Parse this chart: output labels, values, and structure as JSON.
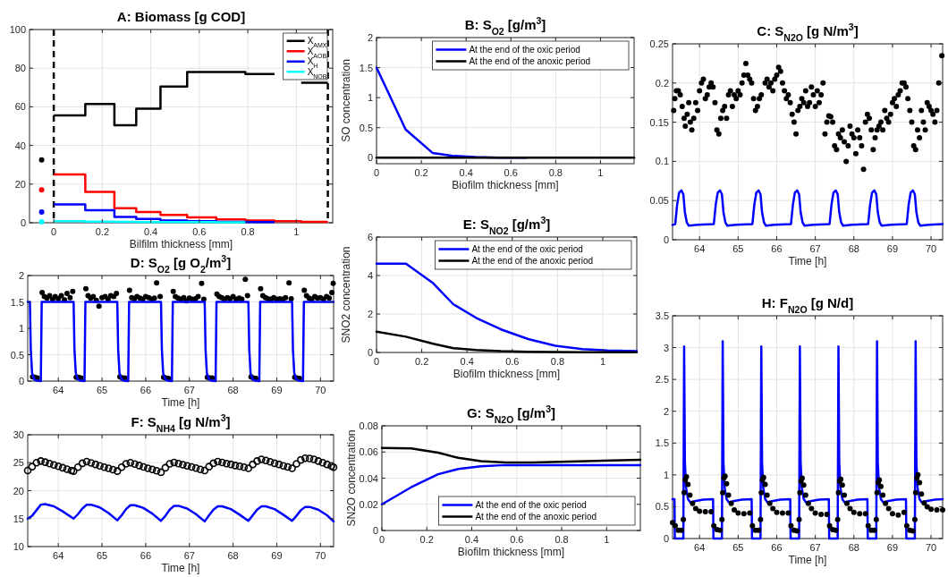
{
  "chart_data": [
    {
      "type": "step",
      "title": "A: Biomass [g COD]",
      "xlabel": "Bilfilm thickness [mm]",
      "xlim": [
        -0.1,
        1.15
      ],
      "xticks": [
        0,
        0.2,
        0.4,
        0.6,
        0.8,
        1
      ],
      "ylim": [
        0,
        100
      ],
      "yticks": [
        0,
        20,
        40,
        60,
        80,
        100
      ],
      "grid": true,
      "legend": "top right",
      "ref_lines": [
        {
          "axis": "x",
          "value": 0,
          "color": "#000000",
          "line_style": "dashed"
        },
        {
          "axis": "x",
          "value": 1.13,
          "color": "#000000",
          "line_style": "dashed"
        }
      ],
      "series": [
        {
          "name": "X$_{AMX}$",
          "color": "#000000",
          "x": [
            0,
            0.13,
            0.25,
            0.34,
            0.44,
            0.55,
            0.67,
            0.79,
            0.91,
            1.02,
            1.13
          ],
          "values": [
            55.5,
            61.5,
            50.5,
            59,
            70.5,
            78,
            78,
            77,
            null,
            72.5,
            72.5
          ]
        },
        {
          "name": "X$_{AOB}$",
          "color": "#ff0000",
          "x": [
            0,
            0.13,
            0.25,
            0.34,
            0.44,
            0.55,
            0.67,
            0.79,
            0.91,
            1.02,
            1.13
          ],
          "values": [
            25,
            16,
            7.5,
            5.5,
            4,
            2.8,
            1.7,
            1.2,
            0.8,
            0.5,
            0.5
          ]
        },
        {
          "name": "X$_{H}$",
          "color": "#0000ff",
          "x": [
            0,
            0.13,
            0.25,
            0.34,
            0.44,
            0.55,
            0.67,
            0.79,
            0.91
          ],
          "values": [
            9.5,
            6.5,
            3,
            2,
            1.2,
            0.8,
            0.5,
            0.4,
            0.4
          ]
        },
        {
          "name": "X$_{NOB}$",
          "color": "#00ffff",
          "x": [
            0,
            0.13,
            0.25,
            0.34,
            0.44,
            0.55,
            0.67,
            0.79
          ],
          "values": [
            0.8,
            0.6,
            0.5,
            0.4,
            0.3,
            0.3,
            0.2,
            0.2
          ]
        },
        {
          "type": "scatter",
          "marker": "circle",
          "color": "#000000",
          "x": [
            -0.05
          ],
          "values": [
            32.5
          ]
        },
        {
          "type": "scatter",
          "marker": "circle",
          "color": "#ff0000",
          "x": [
            -0.05
          ],
          "values": [
            17
          ]
        },
        {
          "type": "scatter",
          "marker": "circle",
          "color": "#0000ff",
          "x": [
            -0.05
          ],
          "values": [
            5.5
          ]
        },
        {
          "type": "scatter",
          "marker": "circle",
          "color": "#00ffff",
          "x": [
            -0.05
          ],
          "values": [
            0.5
          ]
        }
      ]
    },
    {
      "type": "line",
      "title": "B: S$_{O2}$ [g/m$^{3}$]",
      "xlabel": "Biofilm thickness [mm]",
      "ylabel": "SO concentration",
      "xlim": [
        0,
        1.15
      ],
      "xticks": [
        0,
        0.2,
        0.4,
        0.6,
        0.8,
        1
      ],
      "ylim": [
        -0.1,
        2
      ],
      "yticks": [
        0,
        0.5,
        1,
        1.5,
        2
      ],
      "grid": true,
      "legend": "top right",
      "x": [
        0,
        0.13,
        0.25,
        0.34,
        0.44,
        0.55,
        0.67,
        0.79,
        0.91,
        1.02,
        1.15
      ],
      "series": [
        {
          "name": "At the end of the oxic period",
          "color": "#0000ff",
          "values": [
            1.5,
            0.47,
            0.08,
            0.03,
            0.01,
            0,
            0,
            null,
            null,
            null,
            null
          ]
        },
        {
          "name": "At the end of the anoxic period",
          "color": "#000000",
          "values": [
            0,
            0,
            0,
            0,
            0,
            0,
            0,
            0,
            0,
            0,
            0
          ]
        }
      ]
    },
    {
      "type": "line",
      "title": "C: S$_{N2O}$ [g N/m$^{3}$]",
      "xlabel": "Time [h]",
      "xlim": [
        63.3,
        70.3
      ],
      "xticks": [
        64,
        65,
        66,
        67,
        68,
        69,
        70
      ],
      "ylim": [
        0,
        0.25
      ],
      "yticks": [
        0,
        0.05,
        0.1,
        0.15,
        0.2,
        0.25
      ],
      "grid": true,
      "series": [
        {
          "type": "scatter",
          "marker": "circle",
          "color": "#000000",
          "x": [
            63.33,
            63.36,
            63.4,
            63.45,
            63.5,
            63.55,
            63.6,
            63.63,
            63.68,
            63.72,
            63.76,
            63.8,
            63.85,
            63.9,
            63.95,
            64.0,
            64.05,
            64.1,
            64.15,
            64.2,
            64.25,
            64.3,
            64.35,
            64.4,
            64.45,
            64.5,
            64.55,
            64.6,
            64.65,
            64.7,
            64.75,
            64.8,
            64.85,
            64.9,
            64.95,
            65.0,
            65.05,
            65.1,
            65.15,
            65.2,
            65.25,
            65.3,
            65.35,
            65.4,
            65.45,
            65.5,
            65.55,
            65.6,
            65.7,
            65.75,
            65.8,
            65.85,
            65.9,
            65.95,
            66.0,
            66.05,
            66.1,
            66.15,
            66.2,
            66.25,
            66.3,
            66.35,
            66.4,
            66.45,
            66.5,
            66.55,
            66.6,
            66.65,
            66.7,
            66.75,
            66.8,
            66.85,
            66.9,
            66.95,
            67.0,
            67.05,
            67.1,
            67.15,
            67.2,
            67.25,
            67.3,
            67.35,
            67.4,
            67.45,
            67.5,
            67.55,
            67.6,
            67.65,
            67.7,
            67.75,
            67.8,
            67.85,
            67.9,
            67.95,
            68.0,
            68.05,
            68.1,
            68.15,
            68.2,
            68.25,
            68.3,
            68.35,
            68.4,
            68.45,
            68.5,
            68.55,
            68.6,
            68.65,
            68.7,
            68.75,
            68.8,
            68.85,
            68.9,
            68.95,
            69.0,
            69.05,
            69.1,
            69.15,
            69.2,
            69.25,
            69.3,
            69.35,
            69.4,
            69.45,
            69.5,
            69.55,
            69.6,
            69.65,
            69.7,
            69.75,
            69.8,
            69.85,
            69.9,
            69.95,
            70.0,
            70.05,
            70.1,
            70.15,
            70.2,
            70.28
          ],
          "values": [
            0.165,
            0.18,
            0.19,
            0.19,
            0.185,
            0.17,
            0.155,
            0.145,
            0.16,
            0.175,
            0.15,
            0.14,
            0.155,
            0.175,
            0.165,
            0.19,
            0.2,
            0.205,
            0.18,
            0.185,
            0.195,
            0.2,
            0.195,
            0.175,
            0.14,
            0.135,
            0.155,
            0.165,
            0.17,
            0.155,
            0.185,
            0.19,
            0.17,
            0.185,
            0.18,
            0.19,
            0.185,
            0.2,
            0.21,
            0.225,
            0.21,
            0.205,
            0.2,
            0.18,
            0.165,
            0.17,
            0.18,
            0.185,
            0.2,
            0.205,
            0.195,
            0.2,
            0.19,
            0.205,
            0.21,
            0.22,
            0.215,
            0.2,
            0.19,
            0.18,
            0.185,
            0.175,
            0.16,
            0.15,
            0.135,
            0.165,
            0.17,
            0.18,
            0.175,
            0.19,
            0.17,
            0.175,
            0.195,
            0.185,
            0.17,
            0.19,
            0.175,
            0.185,
            0.2,
            0.135,
            0.15,
            0.158,
            0.157,
            0.15,
            0.12,
            0.115,
            0.135,
            0.13,
            0.14,
            0.125,
            0.1,
            0.12,
            0.145,
            0.135,
            0.13,
            0.11,
            0.14,
            0.13,
            0.12,
            0.09,
            0.15,
            0.16,
            0.155,
            0.14,
            0.115,
            0.13,
            0.14,
            0.145,
            0.15,
            0.14,
            0.165,
            0.155,
            0.15,
            0.16,
            0.175,
            0.18,
            0.17,
            0.185,
            0.19,
            0.2,
            0.2,
            0.195,
            0.18,
            0.165,
            0.15,
            0.12,
            0.115,
            0.14,
            0.13,
            0.165,
            0.15,
            0.14,
            0.175,
            0.17,
            0.165,
            0.16,
            0.15,
            0.165,
            0.2,
            0.235
          ]
        },
        {
          "color": "#0000ff",
          "x": [
            63.3,
            63.37,
            63.42,
            63.47,
            63.53,
            63.58,
            63.62,
            63.67,
            63.72,
            63.95,
            64.37,
            64.42,
            64.47,
            64.53,
            64.58,
            64.62,
            64.67,
            64.72,
            64.95,
            65.37,
            65.42,
            65.47,
            65.53,
            65.58,
            65.62,
            65.67,
            65.72,
            65.95,
            66.37,
            66.42,
            66.47,
            66.53,
            66.58,
            66.62,
            66.67,
            66.72,
            66.95,
            67.37,
            67.42,
            67.47,
            67.53,
            67.58,
            67.62,
            67.67,
            67.72,
            67.95,
            68.37,
            68.42,
            68.47,
            68.53,
            68.58,
            68.62,
            68.67,
            68.72,
            68.95,
            69.37,
            69.42,
            69.47,
            69.53,
            69.58,
            69.62,
            69.67,
            69.72,
            69.95,
            70.3
          ],
          "values": [
            0.019,
            0.02,
            0.045,
            0.06,
            0.063,
            0.058,
            0.035,
            0.022,
            0.018,
            0.019,
            0.02,
            0.045,
            0.06,
            0.063,
            0.058,
            0.035,
            0.022,
            0.018,
            0.019,
            0.02,
            0.045,
            0.06,
            0.063,
            0.058,
            0.035,
            0.022,
            0.018,
            0.019,
            0.02,
            0.045,
            0.06,
            0.063,
            0.058,
            0.035,
            0.022,
            0.018,
            0.019,
            0.02,
            0.045,
            0.06,
            0.063,
            0.058,
            0.035,
            0.022,
            0.018,
            0.019,
            0.02,
            0.045,
            0.06,
            0.063,
            0.058,
            0.035,
            0.022,
            0.018,
            0.019,
            0.02,
            0.045,
            0.06,
            0.063,
            0.058,
            0.035,
            0.022,
            0.018,
            0.019,
            0.02
          ]
        }
      ]
    },
    {
      "type": "line",
      "title": "D: S$_{O2}$ [g O$_{2}$/m$^{3}$]",
      "xlabel": "Time [h]",
      "xlim": [
        63.3,
        70.3
      ],
      "xticks": [
        64,
        65,
        66,
        67,
        68,
        69,
        70
      ],
      "ylim": [
        0,
        2
      ],
      "yticks": [
        0,
        0.5,
        1,
        1.5,
        2
      ],
      "grid": true,
      "series": [
        {
          "type": "scatter",
          "marker": "circle",
          "color": "#000000",
          "x": [
            63.41,
            63.46,
            63.52,
            63.63,
            63.68,
            63.74,
            63.8,
            63.87,
            63.93,
            64.0,
            64.07,
            64.14,
            64.2,
            64.27,
            64.33,
            64.41,
            64.46,
            64.52,
            64.63,
            64.68,
            64.74,
            64.8,
            64.87,
            64.93,
            65.0,
            65.07,
            65.14,
            65.2,
            65.27,
            65.33,
            65.41,
            65.46,
            65.52,
            65.63,
            65.68,
            65.74,
            65.8,
            65.87,
            65.93,
            66.0,
            66.07,
            66.14,
            66.2,
            66.25,
            66.33,
            66.41,
            66.46,
            66.52,
            66.63,
            66.68,
            66.74,
            66.8,
            66.87,
            66.93,
            67.0,
            67.07,
            67.14,
            67.2,
            67.28,
            67.33,
            67.41,
            67.46,
            67.52,
            67.63,
            67.68,
            67.74,
            67.8,
            67.87,
            67.93,
            68.0,
            68.07,
            68.14,
            68.2,
            68.28,
            68.33,
            68.41,
            68.46,
            68.52,
            68.63,
            68.68,
            68.74,
            68.8,
            68.87,
            68.93,
            69.0,
            69.07,
            69.14,
            69.2,
            69.28,
            69.33,
            69.41,
            69.46,
            69.52,
            69.63,
            69.68,
            69.74,
            69.8,
            69.87,
            69.93,
            70.0,
            70.07,
            70.14,
            70.2,
            70.26,
            70.29
          ],
          "values": [
            0.08,
            0.07,
            0.06,
            1.68,
            1.6,
            1.57,
            1.62,
            1.55,
            1.6,
            1.56,
            1.62,
            1.54,
            1.66,
            1.58,
            1.7,
            0.07,
            0.07,
            0.06,
            1.75,
            1.62,
            1.57,
            1.6,
            1.53,
            1.42,
            1.58,
            1.6,
            1.55,
            1.62,
            1.6,
            1.66,
            0.08,
            0.06,
            0.06,
            1.72,
            1.58,
            1.56,
            1.6,
            1.57,
            1.55,
            1.6,
            1.58,
            1.55,
            1.57,
            1.86,
            1.6,
            0.07,
            0.06,
            0.05,
            1.7,
            1.6,
            1.57,
            1.55,
            1.58,
            1.52,
            1.57,
            1.55,
            1.56,
            1.6,
            1.85,
            1.55,
            0.07,
            0.06,
            0.06,
            1.65,
            1.6,
            1.58,
            1.55,
            1.58,
            1.56,
            1.6,
            1.55,
            1.57,
            1.55,
            1.93,
            1.62,
            0.08,
            0.06,
            0.05,
            1.75,
            1.62,
            1.58,
            1.56,
            1.55,
            1.58,
            1.55,
            1.56,
            1.55,
            1.58,
            1.86,
            1.56,
            0.07,
            0.06,
            0.05,
            1.72,
            1.62,
            1.57,
            1.55,
            1.6,
            1.57,
            1.58,
            1.55,
            1.6,
            1.57,
            1.68,
            1.85
          ]
        },
        {
          "color": "#0000ff",
          "x": [
            63.3,
            63.35,
            63.37,
            63.4,
            63.45,
            63.5,
            63.6,
            63.62,
            64.35,
            64.37,
            64.4,
            64.45,
            64.5,
            64.6,
            64.62,
            65.35,
            65.37,
            65.4,
            65.45,
            65.5,
            65.6,
            65.62,
            66.35,
            66.37,
            66.4,
            66.45,
            66.5,
            66.6,
            66.62,
            67.35,
            67.37,
            67.4,
            67.45,
            67.5,
            67.6,
            67.62,
            68.35,
            68.37,
            68.4,
            68.45,
            68.5,
            68.6,
            68.62,
            69.35,
            69.37,
            69.4,
            69.45,
            69.5,
            69.6,
            69.62,
            70.3
          ],
          "values": [
            1.5,
            1.5,
            0.6,
            0.15,
            0.03,
            0.01,
            0,
            1.5,
            1.5,
            0.6,
            0.15,
            0.03,
            0.01,
            0,
            1.5,
            1.5,
            0.6,
            0.15,
            0.03,
            0.01,
            0,
            1.5,
            1.5,
            0.6,
            0.15,
            0.03,
            0.01,
            0,
            1.5,
            1.5,
            0.6,
            0.15,
            0.03,
            0.01,
            0,
            1.5,
            1.5,
            0.6,
            0.15,
            0.03,
            0.01,
            0,
            1.5,
            1.5,
            0.6,
            0.15,
            0.03,
            0.01,
            0,
            1.5,
            1.5
          ]
        }
      ]
    },
    {
      "type": "line",
      "title": "E: S$_{NO2}$ [g/m$^{3}$]",
      "xlabel": "Biofilm thickness [mm]",
      "ylabel": "SNO2 concentration",
      "xlim": [
        0,
        1.15
      ],
      "xticks": [
        0,
        0.2,
        0.4,
        0.6,
        0.8,
        1
      ],
      "ylim": [
        0,
        6
      ],
      "yticks": [
        0,
        2,
        4,
        6
      ],
      "grid": true,
      "legend": "top right",
      "x": [
        0,
        0.13,
        0.25,
        0.34,
        0.44,
        0.55,
        0.67,
        0.79,
        0.91,
        1.02,
        1.15
      ],
      "series": [
        {
          "name": "At the end of the oxic period",
          "color": "#0000ff",
          "values": [
            4.62,
            4.62,
            3.6,
            2.5,
            1.8,
            1.2,
            0.7,
            0.35,
            0.17,
            0.1,
            0.07
          ]
        },
        {
          "name": "At the end of the anoxic period",
          "color": "#000000",
          "values": [
            1.08,
            0.82,
            0.45,
            0.22,
            0.13,
            0.07,
            0.04,
            0.02,
            0.01,
            0.01,
            0.01
          ]
        }
      ]
    },
    {
      "type": "line",
      "title": "F: S$_{NH4}$ [g N/m$^{3}$]",
      "xlabel": "Time [h]",
      "xlim": [
        63.3,
        70.3
      ],
      "xticks": [
        64,
        65,
        66,
        67,
        68,
        69,
        70
      ],
      "ylim": [
        10,
        30
      ],
      "yticks": [
        10,
        15,
        20,
        25,
        30
      ],
      "grid": true,
      "series": [
        {
          "type": "scatter",
          "marker": "circle",
          "color": "#000000",
          "x": [
            63.3,
            63.4,
            63.5,
            63.6,
            63.7,
            63.8,
            63.9,
            64.0,
            64.1,
            64.2,
            64.3,
            64.35,
            64.45,
            64.55,
            64.65,
            64.75,
            64.85,
            64.95,
            65.05,
            65.15,
            65.25,
            65.35,
            65.45,
            65.55,
            65.65,
            65.75,
            65.85,
            65.95,
            66.05,
            66.15,
            66.25,
            66.35,
            66.45,
            66.55,
            66.65,
            66.75,
            66.85,
            66.95,
            67.05,
            67.15,
            67.25,
            67.35,
            67.45,
            67.55,
            67.65,
            67.75,
            67.85,
            67.95,
            68.05,
            68.15,
            68.25,
            68.35,
            68.45,
            68.55,
            68.65,
            68.75,
            68.85,
            68.95,
            69.05,
            69.15,
            69.25,
            69.35,
            69.45,
            69.55,
            69.65,
            69.75,
            69.85,
            69.95,
            70.05,
            70.15,
            70.25,
            70.3
          ],
          "values": [
            23.6,
            24.3,
            25,
            25.3,
            25.1,
            24.85,
            24.6,
            24.35,
            24.1,
            23.85,
            23.6,
            23.5,
            24.2,
            24.9,
            25.2,
            24.95,
            24.7,
            24.45,
            24.2,
            24,
            23.75,
            23.5,
            24.2,
            24.8,
            25,
            24.75,
            24.5,
            24.25,
            24,
            23.8,
            23.55,
            23.3,
            24.1,
            24.8,
            25.05,
            24.85,
            24.65,
            24.45,
            24.25,
            24.05,
            23.8,
            23.6,
            24.3,
            24.9,
            25.2,
            25.05,
            24.85,
            24.7,
            24.5,
            24.35,
            24.2,
            24,
            24.7,
            25.3,
            25.6,
            25.4,
            25.15,
            24.9,
            24.7,
            24.45,
            24.25,
            24,
            24.8,
            25.5,
            25.8,
            25.75,
            25.6,
            25.3,
            25,
            24.7,
            24.4,
            24.2
          ]
        },
        {
          "color": "#0000ff",
          "x": [
            63.3,
            63.4,
            63.5,
            63.6,
            63.7,
            63.9,
            64.1,
            64.35,
            64.45,
            64.55,
            64.65,
            64.75,
            64.95,
            65.15,
            65.35,
            65.45,
            65.55,
            65.65,
            65.75,
            65.95,
            66.15,
            66.35,
            66.45,
            66.55,
            66.65,
            66.75,
            66.95,
            67.15,
            67.35,
            67.45,
            67.55,
            67.65,
            67.75,
            67.95,
            68.15,
            68.35,
            68.45,
            68.55,
            68.65,
            68.75,
            68.95,
            69.15,
            69.35,
            69.45,
            69.55,
            69.65,
            69.75,
            69.95,
            70.15,
            70.3
          ],
          "values": [
            15,
            15.5,
            16.5,
            17.5,
            17.6,
            17.2,
            16.3,
            15,
            15.8,
            16.8,
            17.5,
            17.5,
            17,
            16,
            14.7,
            15.6,
            16.7,
            17.4,
            17.4,
            16.9,
            15.9,
            14.6,
            15.5,
            16.6,
            17.3,
            17.3,
            16.8,
            15.8,
            14.5,
            15.6,
            16.6,
            17.2,
            17.2,
            16.7,
            15.7,
            14.6,
            15.6,
            16.6,
            17.2,
            17.2,
            16.7,
            15.7,
            14.6,
            15.5,
            16.5,
            17.1,
            17.1,
            16.6,
            15.6,
            14.5
          ]
        }
      ]
    },
    {
      "type": "line",
      "title": "G: S$_{N2O}$ [g/m$^{3}$]",
      "xlabel": "Biofilm thickness [mm]",
      "ylabel": "SN2O concentration",
      "xlim": [
        0,
        1.15
      ],
      "xticks": [
        0,
        0.2,
        0.4,
        0.6,
        0.8,
        1
      ],
      "ylim": [
        0,
        0.08
      ],
      "yticks": [
        0,
        0.02,
        0.04,
        0.06,
        0.08
      ],
      "grid": true,
      "legend": "bottom right",
      "x": [
        0,
        0.13,
        0.25,
        0.34,
        0.44,
        0.55,
        0.67,
        0.79,
        0.91,
        1.02,
        1.15
      ],
      "series": [
        {
          "name": "At the end of the oxic period",
          "color": "#0000ff",
          "values": [
            0.02,
            0.033,
            0.043,
            0.047,
            0.049,
            0.05,
            0.05,
            0.05,
            0.05,
            0.05,
            0.05
          ]
        },
        {
          "name": "At the end of the anoxic period",
          "color": "#000000",
          "values": [
            0.063,
            0.0628,
            0.0595,
            0.0555,
            0.053,
            0.052,
            0.052,
            0.0525,
            0.053,
            0.0535,
            0.054
          ]
        }
      ]
    },
    {
      "type": "line",
      "title": "H: F$_{N2O}$ [g N/d]",
      "xlabel": "Time [h]",
      "xlim": [
        63.3,
        70.3
      ],
      "xticks": [
        64,
        65,
        66,
        67,
        68,
        69,
        70
      ],
      "ylim": [
        0,
        3.5
      ],
      "yticks": [
        0,
        0.5,
        1,
        1.5,
        2,
        2.5,
        3,
        3.5
      ],
      "grid": true,
      "series": [
        {
          "color": "#0000ff",
          "x": [
            63.3,
            63.35,
            63.36,
            63.58,
            63.6,
            63.62,
            63.65,
            63.7,
            63.76,
            63.9,
            64.1,
            64.35,
            64.36,
            64.58,
            64.6,
            64.62,
            64.65,
            64.7,
            64.76,
            64.9,
            65.1,
            65.35,
            65.36,
            65.58,
            65.6,
            65.62,
            65.65,
            65.7,
            65.76,
            65.9,
            66.1,
            66.35,
            66.36,
            66.58,
            66.6,
            66.62,
            66.65,
            66.7,
            66.76,
            66.9,
            67.1,
            67.35,
            67.36,
            67.58,
            67.6,
            67.62,
            67.65,
            67.7,
            67.76,
            67.9,
            68.1,
            68.35,
            68.36,
            68.58,
            68.6,
            68.62,
            68.65,
            68.7,
            68.76,
            68.9,
            69.1,
            69.35,
            69.36,
            69.58,
            69.6,
            69.62,
            69.65,
            69.7,
            69.76,
            69.9,
            70.1,
            70.3
          ],
          "values": [
            0.62,
            0.62,
            0,
            0,
            3.02,
            1.2,
            0.8,
            0.62,
            0.57,
            0.59,
            0.61,
            0.62,
            0,
            0,
            3.1,
            1.2,
            0.8,
            0.62,
            0.57,
            0.59,
            0.61,
            0.62,
            0,
            0,
            3.02,
            1.2,
            0.8,
            0.62,
            0.57,
            0.59,
            0.61,
            0.62,
            0,
            0,
            3.02,
            1.2,
            0.8,
            0.62,
            0.57,
            0.59,
            0.61,
            0.62,
            0,
            0,
            3.02,
            1.2,
            0.8,
            0.62,
            0.57,
            0.59,
            0.61,
            0.62,
            0,
            0,
            3.1,
            1.2,
            0.8,
            0.62,
            0.57,
            0.59,
            0.61,
            0.62,
            0,
            0,
            3.1,
            1.2,
            0.8,
            0.62,
            0.57,
            0.59,
            0.61,
            0.62
          ]
        },
        {
          "type": "scatter",
          "marker": "circle",
          "color": "#000000",
          "x": [
            63.3,
            63.37,
            63.45,
            63.53,
            63.58,
            63.6,
            63.63,
            63.66,
            63.7,
            63.75,
            63.82,
            63.9,
            64.0,
            64.15,
            64.3,
            64.37,
            64.45,
            64.53,
            64.58,
            64.6,
            64.63,
            64.66,
            64.7,
            64.75,
            64.82,
            64.9,
            65.0,
            65.15,
            65.3,
            65.37,
            65.45,
            65.53,
            65.58,
            65.6,
            65.63,
            65.66,
            65.7,
            65.75,
            65.82,
            65.9,
            66.0,
            66.15,
            66.3,
            66.37,
            66.45,
            66.53,
            66.58,
            66.6,
            66.63,
            66.66,
            66.7,
            66.75,
            66.82,
            66.9,
            67.0,
            67.15,
            67.3,
            67.37,
            67.45,
            67.53,
            67.58,
            67.6,
            67.63,
            67.66,
            67.7,
            67.75,
            67.82,
            67.9,
            68.0,
            68.15,
            68.3,
            68.37,
            68.45,
            68.53,
            68.58,
            68.6,
            68.63,
            68.66,
            68.7,
            68.75,
            68.82,
            68.9,
            69.0,
            69.15,
            69.3,
            69.37,
            69.45,
            69.53,
            69.58,
            69.6,
            69.63,
            69.66,
            69.7,
            69.75,
            69.82,
            69.9,
            70.0,
            70.15,
            70.3
          ],
          "values": [
            0.25,
            0.2,
            0.13,
            0.13,
            0.3,
            0.72,
            0.92,
            0.97,
            0.85,
            0.68,
            0.55,
            0.47,
            0.43,
            0.42,
            0.42,
            0.2,
            0.14,
            0.13,
            0.3,
            0.72,
            0.95,
            0.98,
            0.86,
            0.68,
            0.55,
            0.45,
            0.4,
            0.39,
            0.4,
            0.2,
            0.13,
            0.13,
            0.3,
            0.72,
            0.92,
            0.96,
            0.85,
            0.68,
            0.55,
            0.47,
            0.41,
            0.4,
            0.4,
            0.2,
            0.13,
            0.12,
            0.3,
            0.72,
            0.9,
            0.95,
            0.84,
            0.68,
            0.55,
            0.47,
            0.4,
            0.38,
            0.38,
            0.2,
            0.14,
            0.13,
            0.3,
            0.72,
            0.9,
            0.93,
            0.84,
            0.68,
            0.55,
            0.47,
            0.41,
            0.39,
            0.39,
            0.2,
            0.13,
            0.13,
            0.3,
            0.72,
            0.88,
            0.92,
            0.82,
            0.68,
            0.55,
            0.47,
            0.39,
            0.37,
            0.41,
            0.2,
            0.13,
            0.12,
            0.3,
            0.72,
            0.95,
            1.0,
            0.88,
            0.7,
            0.56,
            0.5,
            0.46,
            0.45,
            0.45
          ]
        }
      ]
    }
  ]
}
